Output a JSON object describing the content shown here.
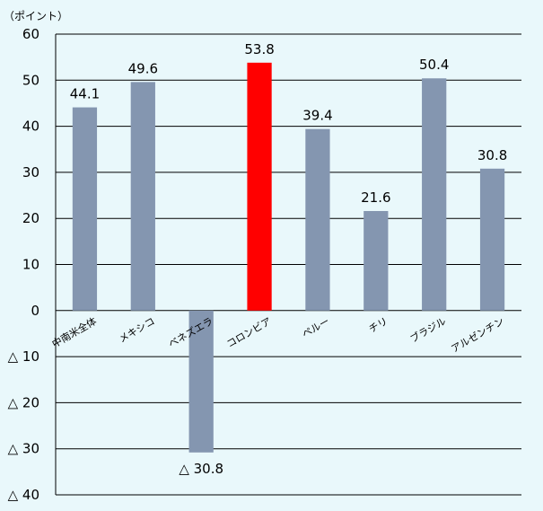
{
  "chart_data": {
    "type": "bar",
    "unit_label": "（ポイント）",
    "categories": [
      "中南米全体",
      "メキシコ",
      "ベネズエラ",
      "コロンビア",
      "ペルー",
      "チリ",
      "ブラジル",
      "アルゼンチン"
    ],
    "values": [
      44.1,
      49.6,
      -30.8,
      53.8,
      39.4,
      21.6,
      50.4,
      30.8
    ],
    "value_labels": [
      "44.1",
      "49.6",
      "△ 30.8",
      "53.8",
      "39.4",
      "21.6",
      "50.4",
      "30.8"
    ],
    "highlight_index": 3,
    "ylim": [
      -40,
      60
    ],
    "yticks": [
      60,
      50,
      40,
      30,
      20,
      10,
      0,
      -10,
      -20,
      -30,
      -40
    ],
    "ytick_labels": [
      "60",
      "50",
      "40",
      "30",
      "20",
      "10",
      "0",
      "△ 10",
      "△ 20",
      "△ 30",
      "△ 40"
    ],
    "grid": true,
    "colors": {
      "bar": "#8496b0",
      "highlight": "#ff0000",
      "background": "#e9f8fb",
      "grid": "#000000"
    }
  }
}
